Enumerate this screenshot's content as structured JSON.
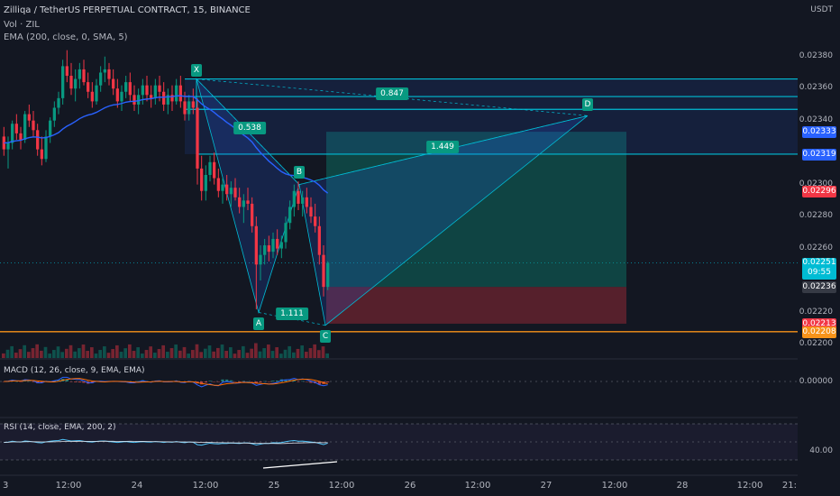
{
  "header": {
    "symbol_line": "Zilliqa / TetherUS PERPETUAL CONTRACT, 15, BINANCE",
    "vol_label": "Vol · ZIL",
    "ema_label": "EMA (200, close, 0, SMA, 5)",
    "currency": "USDT"
  },
  "chart_data": {
    "type": "candlestick",
    "symbol": "ZILUSDT",
    "exchange": "BINANCE",
    "timeframe": "15",
    "x_ticks": [
      "3",
      "12:00",
      "24",
      "12:00",
      "25",
      "12:00",
      "26",
      "12:00",
      "27",
      "12:00",
      "28",
      "12:00",
      "21:"
    ],
    "y_ticks": [
      "0.02380",
      "0.02360",
      "0.02340",
      "0.02300",
      "0.02280",
      "0.02260",
      "0.02220",
      "0.02200"
    ],
    "ylim": [
      0.022,
      0.0239
    ],
    "price_tags": [
      {
        "value": "0.02333",
        "color": "#2962ff"
      },
      {
        "value": "0.02319",
        "color": "#2962ff"
      },
      {
        "value": "0.02296",
        "color": "#f23645"
      },
      {
        "value": "0.02251",
        "sub": "09:55",
        "color": "#00bcd4"
      },
      {
        "value": "0.02236",
        "color": "#363a45"
      },
      {
        "value": "0.02213",
        "color": "#f23645"
      },
      {
        "value": "0.02208",
        "color": "#f7931a"
      }
    ],
    "harmonic_pattern": {
      "points": [
        {
          "label": "X",
          "price": 0.02366
        },
        {
          "label": "A",
          "price": 0.0222
        },
        {
          "label": "B",
          "price": 0.023
        },
        {
          "label": "C",
          "price": 0.02212
        },
        {
          "label": "D",
          "price": 0.02343
        }
      ],
      "ratios": [
        "0.538",
        "1.111",
        "1.449",
        "0.847"
      ]
    },
    "horizontal_levels": [
      0.02366,
      0.02355,
      0.02347,
      0.02319,
      0.02208
    ],
    "position": {
      "entry": 0.02236,
      "target": 0.02333,
      "stop": 0.02213
    },
    "candles": [
      [
        0.0233,
        0.02336,
        0.02318,
        0.02322
      ],
      [
        0.02322,
        0.0233,
        0.0231,
        0.02326
      ],
      [
        0.02326,
        0.0234,
        0.02322,
        0.02338
      ],
      [
        0.02338,
        0.02344,
        0.02328,
        0.02332
      ],
      [
        0.02332,
        0.02336,
        0.02322,
        0.02328
      ],
      [
        0.02328,
        0.02346,
        0.02326,
        0.02344
      ],
      [
        0.02344,
        0.0235,
        0.02336,
        0.0234
      ],
      [
        0.0234,
        0.02346,
        0.0233,
        0.02334
      ],
      [
        0.02334,
        0.02338,
        0.02318,
        0.02322
      ],
      [
        0.02322,
        0.0233,
        0.02312,
        0.02316
      ],
      [
        0.02316,
        0.02334,
        0.02314,
        0.0233
      ],
      [
        0.0233,
        0.02342,
        0.02326,
        0.0234
      ],
      [
        0.0234,
        0.02352,
        0.02336,
        0.02348
      ],
      [
        0.02348,
        0.02358,
        0.02344,
        0.02354
      ],
      [
        0.02354,
        0.02378,
        0.0235,
        0.02374
      ],
      [
        0.02374,
        0.02384,
        0.02364,
        0.02368
      ],
      [
        0.02368,
        0.02376,
        0.02356,
        0.0236
      ],
      [
        0.0236,
        0.02372,
        0.02352,
        0.02366
      ],
      [
        0.02366,
        0.02376,
        0.0236,
        0.02372
      ],
      [
        0.02372,
        0.02378,
        0.02362,
        0.02364
      ],
      [
        0.02364,
        0.0237,
        0.02354,
        0.02358
      ],
      [
        0.02358,
        0.02364,
        0.02348,
        0.02352
      ],
      [
        0.02352,
        0.02366,
        0.0235,
        0.02362
      ],
      [
        0.02362,
        0.02374,
        0.02358,
        0.0237
      ],
      [
        0.0237,
        0.0238,
        0.02364,
        0.02372
      ],
      [
        0.02372,
        0.02376,
        0.02362,
        0.02366
      ],
      [
        0.02366,
        0.02372,
        0.02356,
        0.0236
      ],
      [
        0.0236,
        0.02366,
        0.02348,
        0.02352
      ],
      [
        0.02352,
        0.02362,
        0.02346,
        0.02358
      ],
      [
        0.02358,
        0.02368,
        0.02354,
        0.02364
      ],
      [
        0.02364,
        0.0237,
        0.02352,
        0.02356
      ],
      [
        0.02356,
        0.02362,
        0.02346,
        0.0235
      ],
      [
        0.0235,
        0.0236,
        0.02344,
        0.02356
      ],
      [
        0.02356,
        0.02366,
        0.0235,
        0.02362
      ],
      [
        0.02362,
        0.02368,
        0.02352,
        0.02356
      ],
      [
        0.02356,
        0.02362,
        0.02348,
        0.02354
      ],
      [
        0.02354,
        0.02366,
        0.0235,
        0.02362
      ],
      [
        0.02362,
        0.02368,
        0.02352,
        0.02358
      ],
      [
        0.02358,
        0.02364,
        0.02346,
        0.0235
      ],
      [
        0.0235,
        0.0236,
        0.02344,
        0.02356
      ],
      [
        0.02356,
        0.02362,
        0.02346,
        0.02352
      ],
      [
        0.02352,
        0.02366,
        0.0235,
        0.02362
      ],
      [
        0.02362,
        0.02368,
        0.02348,
        0.02352
      ],
      [
        0.02352,
        0.02358,
        0.0234,
        0.02344
      ],
      [
        0.02344,
        0.02356,
        0.0234,
        0.02352
      ],
      [
        0.02352,
        0.0236,
        0.02344,
        0.02348
      ],
      [
        0.02348,
        0.02354,
        0.023,
        0.0231
      ],
      [
        0.0231,
        0.02318,
        0.0229,
        0.02296
      ],
      [
        0.02296,
        0.02312,
        0.0229,
        0.02306
      ],
      [
        0.02306,
        0.02318,
        0.02302,
        0.02314
      ],
      [
        0.02314,
        0.0232,
        0.023,
        0.02304
      ],
      [
        0.02304,
        0.0231,
        0.02292,
        0.02296
      ],
      [
        0.02296,
        0.02304,
        0.02288,
        0.023
      ],
      [
        0.023,
        0.02306,
        0.0229,
        0.02294
      ],
      [
        0.02294,
        0.02302,
        0.02286,
        0.02298
      ],
      [
        0.02298,
        0.02304,
        0.0229,
        0.02292
      ],
      [
        0.02292,
        0.02298,
        0.02282,
        0.02286
      ],
      [
        0.02286,
        0.02294,
        0.02276,
        0.0229
      ],
      [
        0.0229,
        0.02298,
        0.02284,
        0.02288
      ],
      [
        0.02288,
        0.02292,
        0.0227,
        0.02274
      ],
      [
        0.02274,
        0.0228,
        0.02222,
        0.0225
      ],
      [
        0.0225,
        0.02262,
        0.0224,
        0.02256
      ],
      [
        0.02256,
        0.02266,
        0.0225,
        0.02262
      ],
      [
        0.02262,
        0.02268,
        0.02252,
        0.02258
      ],
      [
        0.02258,
        0.0227,
        0.02254,
        0.02266
      ],
      [
        0.02266,
        0.02272,
        0.02256,
        0.0226
      ],
      [
        0.0226,
        0.02268,
        0.02254,
        0.02264
      ],
      [
        0.02264,
        0.0228,
        0.0226,
        0.02276
      ],
      [
        0.02276,
        0.0229,
        0.02272,
        0.02286
      ],
      [
        0.02286,
        0.023,
        0.0228,
        0.02296
      ],
      [
        0.02296,
        0.02302,
        0.02284,
        0.02288
      ],
      [
        0.02288,
        0.02296,
        0.0228,
        0.02292
      ],
      [
        0.02292,
        0.02298,
        0.02282,
        0.02286
      ],
      [
        0.02286,
        0.02292,
        0.02276,
        0.0228
      ],
      [
        0.0228,
        0.02288,
        0.0227,
        0.02274
      ],
      [
        0.02274,
        0.0228,
        0.0225,
        0.02256
      ],
      [
        0.02256,
        0.02262,
        0.0223,
        0.02236
      ],
      [
        0.02236,
        0.02252,
        0.02234,
        0.02251
      ]
    ]
  },
  "macd": {
    "label": "MACD (12, 26, close, 9, EMA, EMA)",
    "y_tick": "0.00000"
  },
  "rsi": {
    "label": "RSI (14, close, EMA, 200, 2)",
    "y_tick": "40.00"
  }
}
